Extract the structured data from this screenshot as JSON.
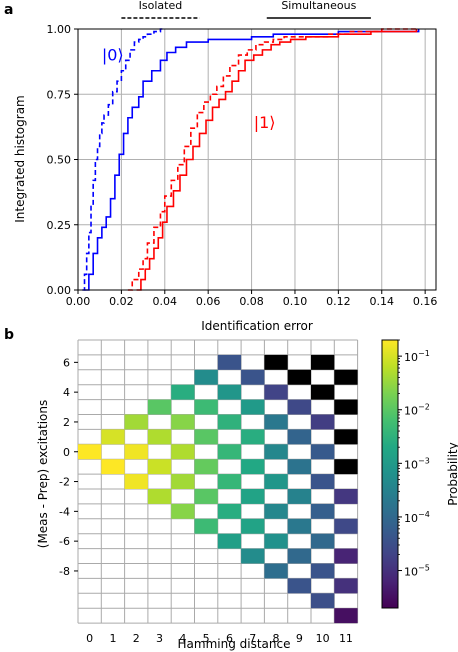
{
  "panel_a": {
    "label": "a",
    "legend": {
      "isolated": "Isolated",
      "simultaneous": "Simultaneous"
    },
    "colors": {
      "state0": "#0000ff",
      "state1": "#ff0000",
      "grid": "#b0b0b0"
    },
    "chart_data": {
      "type": "line",
      "xlabel": "Identification error",
      "ylabel": "Integrated histogram",
      "xlim": [
        0,
        0.165
      ],
      "ylim": [
        0,
        1
      ],
      "xticks": [
        0,
        0.02,
        0.04,
        0.06,
        0.08,
        0.1,
        0.12,
        0.14,
        0.16
      ],
      "xtick_labels": [
        "0.00",
        "0.02",
        "0.04",
        "0.06",
        "0.08",
        "0.10",
        "0.12",
        "0.14",
        "0.16"
      ],
      "yticks": [
        0,
        0.25,
        0.5,
        0.75,
        1.0
      ],
      "ytick_labels": [
        "0.00",
        "0.25",
        "0.50",
        "0.75",
        "1.00"
      ],
      "grid": true,
      "annotations": [
        {
          "text": "|0⟩",
          "x": 0.011,
          "y": 0.88,
          "color": "#0000ff"
        },
        {
          "text": "|1⟩",
          "x": 0.081,
          "y": 0.62,
          "color": "#ff0000"
        }
      ],
      "brackets": [
        {
          "label": "Isolated",
          "x": [
            0.02,
            0.056
          ],
          "style": "dashed"
        },
        {
          "label": "Simultaneous",
          "x": [
            0.087,
            0.135
          ],
          "style": "solid"
        }
      ],
      "series": [
        {
          "state": "0",
          "mode": "isolated",
          "style": "dashed",
          "color": "#0000ff",
          "x": [
            0.002,
            0.003,
            0.004,
            0.005,
            0.006,
            0.007,
            0.008,
            0.009,
            0.01,
            0.011,
            0.012,
            0.014,
            0.016,
            0.018,
            0.02,
            0.022,
            0.024,
            0.026,
            0.028,
            0.03,
            0.032,
            0.035,
            0.038,
            0.04
          ],
          "y": [
            0.0,
            0.06,
            0.14,
            0.22,
            0.32,
            0.42,
            0.5,
            0.55,
            0.6,
            0.64,
            0.67,
            0.71,
            0.76,
            0.8,
            0.84,
            0.88,
            0.92,
            0.95,
            0.96,
            0.97,
            0.98,
            0.99,
            1.0,
            1.0
          ]
        },
        {
          "state": "0",
          "mode": "simultaneous",
          "style": "solid",
          "color": "#0000ff",
          "x": [
            0.003,
            0.005,
            0.007,
            0.009,
            0.011,
            0.013,
            0.015,
            0.017,
            0.019,
            0.021,
            0.023,
            0.025,
            0.028,
            0.03,
            0.034,
            0.038,
            0.041,
            0.045,
            0.05,
            0.06,
            0.07,
            0.08,
            0.09,
            0.1,
            0.12,
            0.157
          ],
          "y": [
            0.0,
            0.06,
            0.14,
            0.2,
            0.24,
            0.28,
            0.35,
            0.44,
            0.52,
            0.6,
            0.66,
            0.7,
            0.74,
            0.8,
            0.84,
            0.88,
            0.91,
            0.93,
            0.95,
            0.96,
            0.96,
            0.97,
            0.98,
            0.98,
            0.99,
            1.0
          ]
        },
        {
          "state": "1",
          "mode": "isolated",
          "style": "dashed",
          "color": "#ff0000",
          "x": [
            0.023,
            0.025,
            0.028,
            0.03,
            0.032,
            0.035,
            0.038,
            0.04,
            0.043,
            0.046,
            0.049,
            0.052,
            0.055,
            0.058,
            0.061,
            0.064,
            0.067,
            0.07,
            0.074,
            0.078,
            0.082,
            0.086,
            0.09,
            0.095,
            0.105,
            0.115,
            0.125,
            0.14,
            0.156
          ],
          "y": [
            0.0,
            0.04,
            0.08,
            0.12,
            0.18,
            0.24,
            0.3,
            0.36,
            0.42,
            0.48,
            0.55,
            0.62,
            0.68,
            0.72,
            0.75,
            0.78,
            0.82,
            0.86,
            0.9,
            0.92,
            0.94,
            0.95,
            0.96,
            0.97,
            0.97,
            0.98,
            0.99,
            1.0,
            1.0
          ]
        },
        {
          "state": "1",
          "mode": "simultaneous",
          "style": "solid",
          "color": "#ff0000",
          "x": [
            0.027,
            0.029,
            0.031,
            0.033,
            0.035,
            0.037,
            0.039,
            0.041,
            0.044,
            0.047,
            0.05,
            0.053,
            0.056,
            0.059,
            0.062,
            0.065,
            0.068,
            0.071,
            0.074,
            0.077,
            0.081,
            0.085,
            0.089,
            0.093,
            0.098,
            0.105,
            0.12,
            0.135,
            0.156
          ],
          "y": [
            0.0,
            0.04,
            0.08,
            0.12,
            0.16,
            0.2,
            0.26,
            0.32,
            0.38,
            0.44,
            0.5,
            0.55,
            0.6,
            0.65,
            0.7,
            0.73,
            0.76,
            0.8,
            0.84,
            0.88,
            0.9,
            0.92,
            0.94,
            0.95,
            0.96,
            0.97,
            0.98,
            0.99,
            1.0
          ]
        }
      ]
    }
  },
  "panel_b": {
    "label": "b",
    "chart_data": {
      "type": "heatmap",
      "xlabel": "Hamming distance",
      "ylabel": "(Meas - Prep) excitations",
      "x_categories": [
        0,
        1,
        2,
        3,
        4,
        5,
        6,
        7,
        8,
        9,
        10,
        11
      ],
      "xtick_labels": [
        "0",
        "1",
        "2",
        "3",
        "4",
        "5",
        "6",
        "7",
        "8",
        "9",
        "10",
        "11"
      ],
      "y_range": [
        -11,
        7
      ],
      "yticks": [
        6,
        4,
        2,
        0,
        -2,
        -4,
        -6,
        -8
      ],
      "ytick_labels": [
        "6",
        "4",
        "2",
        "0",
        "-2",
        "-4",
        "-6",
        "-8"
      ],
      "colorbar": {
        "label": "Probability",
        "scale": "log",
        "range": [
          2e-06,
          0.2
        ],
        "ticks": [
          {
            "value": 0.1,
            "base": "10",
            "exp": "−1"
          },
          {
            "value": 0.01,
            "base": "10",
            "exp": "−2"
          },
          {
            "value": 0.001,
            "base": "10",
            "exp": "−3"
          },
          {
            "value": 0.0001,
            "base": "10",
            "exp": "−4"
          },
          {
            "value": 1e-05,
            "base": "10",
            "exp": "−5"
          }
        ],
        "colormap": "viridis"
      },
      "log10_probability": [
        [
          0,
          0,
          -0.7
        ],
        [
          1,
          1,
          -1.0
        ],
        [
          1,
          -1,
          -0.7
        ],
        [
          2,
          2,
          -1.4
        ],
        [
          2,
          0,
          -0.8
        ],
        [
          2,
          -2,
          -0.8
        ],
        [
          3,
          3,
          -2.0
        ],
        [
          3,
          1,
          -1.3
        ],
        [
          3,
          -1,
          -1.1
        ],
        [
          3,
          -3,
          -1.3
        ],
        [
          4,
          4,
          -2.6
        ],
        [
          4,
          2,
          -1.6
        ],
        [
          4,
          0,
          -1.3
        ],
        [
          4,
          -2,
          -1.4
        ],
        [
          4,
          -4,
          -1.6
        ],
        [
          5,
          5,
          -3.3
        ],
        [
          5,
          3,
          -2.3
        ],
        [
          5,
          1,
          -2.0
        ],
        [
          5,
          -1,
          -1.9
        ],
        [
          5,
          -3,
          -2.0
        ],
        [
          5,
          -5,
          -2.3
        ],
        [
          6,
          6,
          -4.4
        ],
        [
          6,
          4,
          -3.1
        ],
        [
          6,
          2,
          -2.5
        ],
        [
          6,
          0,
          -2.4
        ],
        [
          6,
          -2,
          -2.4
        ],
        [
          6,
          -4,
          -2.6
        ],
        [
          6,
          -6,
          -2.9
        ],
        [
          7,
          5,
          -4.4
        ],
        [
          7,
          3,
          -3.0
        ],
        [
          7,
          1,
          -2.6
        ],
        [
          7,
          -1,
          -2.7
        ],
        [
          7,
          -3,
          -2.8
        ],
        [
          7,
          -5,
          -2.8
        ],
        [
          7,
          -7,
          -3.3
        ],
        [
          8,
          6,
          -6.0
        ],
        [
          8,
          4,
          -4.7
        ],
        [
          8,
          2,
          -3.7
        ],
        [
          8,
          0,
          -3.4
        ],
        [
          8,
          -2,
          -3.1
        ],
        [
          8,
          -4,
          -3.4
        ],
        [
          8,
          -6,
          -3.2
        ],
        [
          8,
          -8,
          -3.9
        ],
        [
          9,
          5,
          -6.0
        ],
        [
          9,
          3,
          -4.6
        ],
        [
          9,
          1,
          -4.1
        ],
        [
          9,
          -1,
          -3.8
        ],
        [
          9,
          -3,
          -3.5
        ],
        [
          9,
          -5,
          -3.7
        ],
        [
          9,
          -7,
          -4.0
        ],
        [
          9,
          -9,
          -4.4
        ],
        [
          10,
          6,
          -6.0
        ],
        [
          10,
          4,
          -6.0
        ],
        [
          10,
          2,
          -4.8
        ],
        [
          10,
          0,
          -4.3
        ],
        [
          10,
          -2,
          -4.4
        ],
        [
          10,
          -4,
          -4.2
        ],
        [
          10,
          -6,
          -4.0
        ],
        [
          10,
          -8,
          -4.4
        ],
        [
          10,
          -10,
          -4.5
        ],
        [
          11,
          5,
          -6.0
        ],
        [
          11,
          3,
          -6.0
        ],
        [
          11,
          1,
          -6.0
        ],
        [
          11,
          -1,
          -6.0
        ],
        [
          11,
          -3,
          -4.9
        ],
        [
          11,
          -5,
          -4.6
        ],
        [
          11,
          -7,
          -5.2
        ],
        [
          11,
          -9,
          -5.0
        ],
        [
          11,
          -11,
          -5.5
        ]
      ]
    }
  }
}
